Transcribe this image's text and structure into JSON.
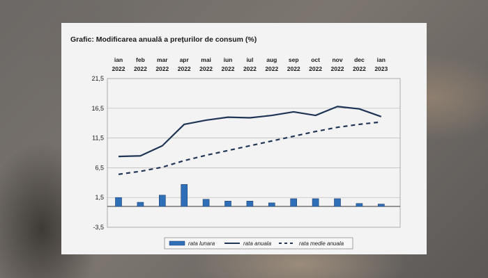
{
  "page": {
    "title": "Grafic: Modificarea anuală a prețurilor de consum (%)"
  },
  "chart_data": {
    "type": "bar",
    "title": "Grafic: Modificarea anuală a prețurilor de consum (%)",
    "categories": [
      {
        "month": "ian",
        "year": "2022"
      },
      {
        "month": "feb",
        "year": "2022"
      },
      {
        "month": "mar",
        "year": "2022"
      },
      {
        "month": "apr",
        "year": "2022"
      },
      {
        "month": "mai",
        "year": "2022"
      },
      {
        "month": "iun",
        "year": "2022"
      },
      {
        "month": "iul",
        "year": "2022"
      },
      {
        "month": "aug",
        "year": "2022"
      },
      {
        "month": "sep",
        "year": "2022"
      },
      {
        "month": "oct",
        "year": "2022"
      },
      {
        "month": "nov",
        "year": "2022"
      },
      {
        "month": "dec",
        "year": "2022"
      },
      {
        "month": "ian",
        "year": "2023"
      }
    ],
    "yticks": [
      "21,5",
      "16,5",
      "11,5",
      "6,5",
      "1,5",
      "-3,5"
    ],
    "ylim": [
      -3.5,
      21.5
    ],
    "x_axis_position": "top",
    "grid": "horizontal",
    "legend_position": "bottom",
    "series": [
      {
        "name": "rata lunara",
        "type": "bar",
        "color": "#2f6fb8",
        "values": [
          1.5,
          0.7,
          1.9,
          3.7,
          1.2,
          0.9,
          0.9,
          0.6,
          1.3,
          1.3,
          1.3,
          0.5,
          0.4
        ]
      },
      {
        "name": "rata anuala",
        "type": "line",
        "color": "#1f3555",
        "values": [
          8.4,
          8.5,
          10.2,
          13.8,
          14.5,
          15.0,
          14.9,
          15.3,
          15.9,
          15.3,
          16.8,
          16.4,
          15.1
        ]
      },
      {
        "name": "rata medie anuala",
        "type": "line-dashed",
        "color": "#1f3555",
        "values": [
          5.4,
          5.9,
          6.6,
          7.7,
          8.6,
          9.4,
          10.2,
          11.0,
          11.8,
          12.6,
          13.3,
          13.8,
          14.2
        ]
      }
    ]
  }
}
